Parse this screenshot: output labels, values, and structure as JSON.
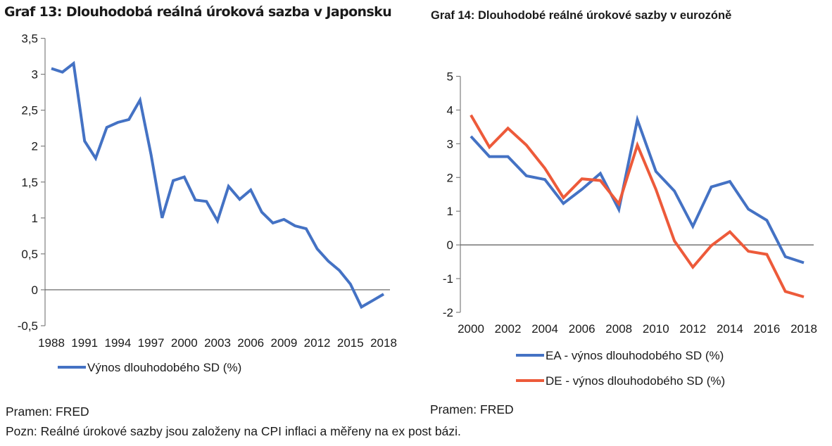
{
  "colors": {
    "blue": "#4472C4",
    "red": "#ED5A3A",
    "axis": "#7f7f7f",
    "zero": "#595959"
  },
  "chart_data": [
    {
      "type": "line",
      "title": "Graf 13: Dlouhodobá reálná úroková sazba v Japonsku",
      "xlabel": "",
      "ylabel": "",
      "x": [
        1988,
        1989,
        1990,
        1991,
        1992,
        1993,
        1994,
        1995,
        1996,
        1997,
        1998,
        1999,
        2000,
        2001,
        2002,
        2003,
        2004,
        2005,
        2006,
        2007,
        2008,
        2009,
        2010,
        2011,
        2012,
        2013,
        2014,
        2015,
        2016,
        2017,
        2018
      ],
      "x_tick_labels": [
        "1988",
        "1991",
        "1994",
        "1997",
        "2000",
        "2003",
        "2006",
        "2009",
        "2012",
        "2015",
        "2018"
      ],
      "y_tick_labels": [
        "3,5",
        "3",
        "2,5",
        "2",
        "1,5",
        "1",
        "0,5",
        "0",
        "-0,5"
      ],
      "y_ticks": [
        3.5,
        3,
        2.5,
        2,
        1.5,
        1,
        0.5,
        0,
        -0.5
      ],
      "ylim": [
        -0.5,
        3.5
      ],
      "grid": false,
      "legend_position": "bottom",
      "series": [
        {
          "name": "Výnos dlouhodobého SD (%)",
          "color": "#4472C4",
          "values": [
            3.08,
            3.03,
            3.15,
            2.07,
            1.83,
            2.26,
            2.33,
            2.37,
            2.64,
            1.88,
            1.0,
            1.52,
            1.57,
            1.25,
            1.23,
            0.96,
            1.44,
            1.26,
            1.39,
            1.08,
            0.93,
            0.98,
            0.89,
            0.85,
            0.57,
            0.4,
            0.27,
            0.08,
            -0.24,
            -0.15,
            -0.06
          ]
        }
      ]
    },
    {
      "type": "line",
      "title": "Graf 14: Dlouhodobé reálné úrokové sazby v eurozóně",
      "xlabel": "",
      "ylabel": "",
      "x": [
        2000,
        2001,
        2002,
        2003,
        2004,
        2005,
        2006,
        2007,
        2008,
        2009,
        2010,
        2011,
        2012,
        2013,
        2014,
        2015,
        2016,
        2017,
        2018
      ],
      "x_tick_labels": [
        "2000",
        "2002",
        "2004",
        "2006",
        "2008",
        "2010",
        "2012",
        "2014",
        "2016",
        "2018"
      ],
      "y_tick_labels": [
        "5",
        "4",
        "3",
        "2",
        "1",
        "0",
        "-1",
        "-2"
      ],
      "y_ticks": [
        5,
        4,
        3,
        2,
        1,
        0,
        -1,
        -2
      ],
      "ylim": [
        -2,
        5
      ],
      "grid": false,
      "legend_position": "bottom",
      "series": [
        {
          "name": "EA - výnos dlouhodobého SD (%)",
          "color": "#4472C4",
          "values": [
            3.22,
            2.62,
            2.62,
            2.05,
            1.94,
            1.23,
            1.65,
            2.12,
            1.05,
            3.71,
            2.18,
            1.6,
            0.55,
            1.72,
            1.88,
            1.06,
            0.73,
            -0.35,
            -0.53
          ]
        },
        {
          "name": "DE - výnos dlouhodobého SD (%)",
          "color": "#ED5A3A",
          "values": [
            3.85,
            2.9,
            3.46,
            2.96,
            2.27,
            1.4,
            1.96,
            1.91,
            1.22,
            2.96,
            1.65,
            0.12,
            -0.66,
            -0.02,
            0.39,
            -0.19,
            -0.28,
            -1.38,
            -1.54
          ]
        }
      ]
    }
  ],
  "footer": {
    "source_left": "Pramen: FRED",
    "source_right": "Pramen: FRED",
    "note": "Pozn: Reálné úrokové sazby jsou založeny na CPI inflaci a měřeny na ex post bázi."
  }
}
